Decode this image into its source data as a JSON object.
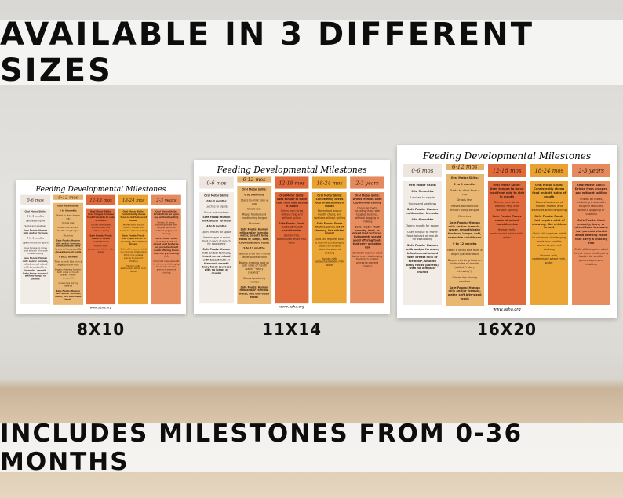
{
  "headline": "AVAILABLE IN 3 DIFFERENT SIZES",
  "footer_banner": "INCLUDES MILESTONES FROM 0-36 MONTHS",
  "poster": {
    "title": "Feeding Developmental Milestones",
    "website": "www.asha.org",
    "columns": [
      {
        "header": "0-6 mos",
        "header_color": "#eee6de",
        "body_color": "#f2ece6",
        "text_color": "#3a2a22",
        "items": [
          "Oral Motor Skills:",
          "0 to 3 months",
          "Latches to nipple",
          "Sucks and swallows",
          "Safe Foods: Human milk and/or formula",
          "4 to 6 months",
          "Opens mouth for spoon",
          "Uses tongue to move food to back of mouth for swallowing",
          "Safe Foods: Human milk and/or formula, infant cereal mixed with breast milk or formula*, smooth baby foods (purees) with no lumps or chunks"
        ]
      },
      {
        "header": "6-12 mos",
        "header_color": "#e6b26c",
        "body_color": "#e8b774",
        "text_color": "#3a2418",
        "items": [
          "Oral Motor Skills:",
          "6 to 9 months",
          "Starts to drink from a cup",
          "Drools less",
          "Moves food around mouth using tongue",
          "Munches",
          "Safe Foods: Human milk and/or formula, water, smooth baby foods w/ lumps, soft, chewable solid foods",
          "9 to 12 months",
          "Takes a small bite from a larger piece of food",
          "Begins chewing food on both sides of mouth (called \"rotary chewing\")",
          "Closes lips during swallow",
          "Safe Foods: Human milk and/or formula, water, soft bite-sized foods"
        ]
      },
      {
        "header": "12-18 mos",
        "header_color": "#df6a3c",
        "body_color": "#e06c3d",
        "text_color": "#3a1a10",
        "items": [
          "Oral Motor Skills: Uses tongue to move food from side to side in mouth",
          "Drinks from straw without help and without spilling",
          "Safe Foods: Foods made of mixed consistencies",
          "Human milk, pasteurized whole milk, water"
        ]
      },
      {
        "header": "18-24 mos",
        "header_color": "#e9a231",
        "body_color": "#eba534",
        "text_color": "#3a2410",
        "items": [
          "Oral Motor Skills: Consistently chews food on both sides of mouth",
          "Moves food around mouth, chews, and swallows without spilling",
          "Safe Foods: Foods that require a lot of chewing, like chicken breast",
          "Child still requires adult to cut more challenging foods into smaller pieces to prevent choking",
          "Human milk, pasteurized whole milk, water"
        ]
      },
      {
        "header": "2-3 years",
        "header_color": "#e58a5c",
        "body_color": "#e78e60",
        "text_color": "#3a1c10",
        "items": [
          "Oral Motor Skills: Drinks from an open cup without spilling",
          "Chews all foods, including those with tougher textures, without gagging or choking",
          "Safe Foods: Most crunchy, hard, or mixed food textures, but parents should avoid offering foods that carry a choking risk",
          "Child still requires adult to cut more challenging foods into smaller pieces to prevent choking"
        ]
      }
    ]
  },
  "sizes": [
    {
      "label": "8X10"
    },
    {
      "label": "11X14"
    },
    {
      "label": "16X20"
    }
  ]
}
